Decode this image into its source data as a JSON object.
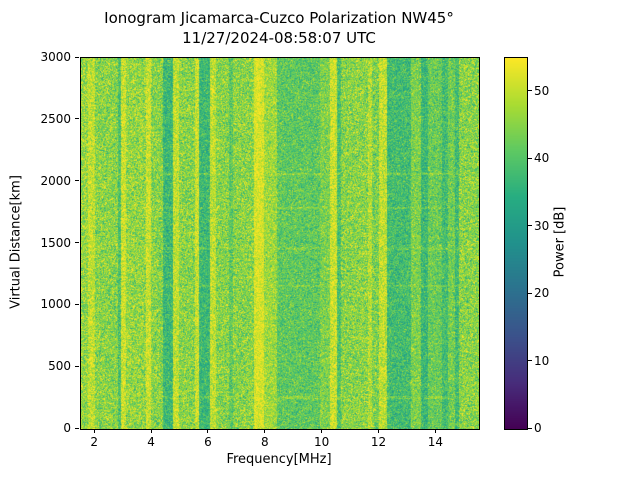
{
  "chart": {
    "title": "Ionogram Jicamarca-Cuzco Polarization NW45°",
    "subtitle": "11/27/2024-08:58:07 UTC",
    "xlabel": "Frequency[MHz]",
    "ylabel": "Virtual Distance[km]",
    "x_ticks": [
      2,
      4,
      6,
      8,
      10,
      12,
      14
    ],
    "y_ticks": [
      0,
      500,
      1000,
      1500,
      2000,
      2500,
      3000
    ],
    "colorbar": {
      "label": "Power [dB]",
      "ticks": [
        0,
        10,
        20,
        30,
        40,
        50
      ]
    }
  },
  "chart_data": {
    "type": "heatmap",
    "title": "Ionogram Jicamarca-Cuzco Polarization NW45°",
    "subtitle": "11/27/2024-08:58:07 UTC",
    "xlabel": "Frequency[MHz]",
    "ylabel": "Virtual Distance[km]",
    "colorbar_label": "Power [dB]",
    "x_range": [
      1.5,
      15.5
    ],
    "y_range": [
      0,
      3000
    ],
    "power_range": [
      0,
      55
    ],
    "colormap": "viridis",
    "colormap_stops": [
      "#440154",
      "#472d7b",
      "#3b528b",
      "#2c728e",
      "#21918c",
      "#27ad81",
      "#5ec962",
      "#aadc32",
      "#fde725"
    ],
    "noise": {
      "base_mean": 45,
      "std": 5
    },
    "bands": [
      {
        "from": 1.5,
        "to": 1.75,
        "mean": 46,
        "std": 5
      },
      {
        "from": 1.75,
        "to": 2.0,
        "mean": 50,
        "std": 4
      },
      {
        "from": 2.0,
        "to": 2.8,
        "mean": 45,
        "std": 5
      },
      {
        "from": 2.8,
        "to": 2.92,
        "mean": 39,
        "std": 4
      },
      {
        "from": 2.92,
        "to": 3.1,
        "mean": 51,
        "std": 4
      },
      {
        "from": 3.1,
        "to": 3.8,
        "mean": 46,
        "std": 5
      },
      {
        "from": 3.8,
        "to": 3.95,
        "mean": 51,
        "std": 4
      },
      {
        "from": 3.95,
        "to": 4.4,
        "mean": 45,
        "std": 5
      },
      {
        "from": 4.4,
        "to": 4.75,
        "mean": 37,
        "std": 4
      },
      {
        "from": 4.75,
        "to": 4.95,
        "mean": 50,
        "std": 4
      },
      {
        "from": 4.95,
        "to": 5.5,
        "mean": 45,
        "std": 5
      },
      {
        "from": 5.5,
        "to": 5.65,
        "mean": 51,
        "std": 4
      },
      {
        "from": 5.65,
        "to": 6.05,
        "mean": 37,
        "std": 4
      },
      {
        "from": 6.05,
        "to": 6.25,
        "mean": 50,
        "std": 4
      },
      {
        "from": 6.25,
        "to": 6.7,
        "mean": 45,
        "std": 5
      },
      {
        "from": 6.7,
        "to": 6.85,
        "mean": 41,
        "std": 4
      },
      {
        "from": 6.85,
        "to": 7.6,
        "mean": 45,
        "std": 5
      },
      {
        "from": 7.6,
        "to": 7.95,
        "mean": 52,
        "std": 3
      },
      {
        "from": 7.95,
        "to": 8.4,
        "mean": 47,
        "std": 4
      },
      {
        "from": 8.4,
        "to": 9.9,
        "mean": 41,
        "std": 4
      },
      {
        "from": 9.9,
        "to": 10.25,
        "mean": 44,
        "std": 4
      },
      {
        "from": 10.25,
        "to": 10.5,
        "mean": 51,
        "std": 4
      },
      {
        "from": 10.5,
        "to": 10.65,
        "mean": 39,
        "std": 4
      },
      {
        "from": 10.65,
        "to": 11.6,
        "mean": 45,
        "std": 5
      },
      {
        "from": 11.6,
        "to": 11.75,
        "mean": 49,
        "std": 4
      },
      {
        "from": 11.75,
        "to": 12.0,
        "mean": 44,
        "std": 5
      },
      {
        "from": 12.0,
        "to": 12.25,
        "mean": 50,
        "std": 4
      },
      {
        "from": 12.25,
        "to": 13.1,
        "mean": 38,
        "std": 4
      },
      {
        "from": 13.1,
        "to": 13.45,
        "mean": 44,
        "std": 4
      },
      {
        "from": 13.45,
        "to": 13.7,
        "mean": 37,
        "std": 4
      },
      {
        "from": 13.7,
        "to": 14.2,
        "mean": 42,
        "std": 4
      },
      {
        "from": 14.2,
        "to": 14.4,
        "mean": 38,
        "std": 4
      },
      {
        "from": 14.4,
        "to": 14.65,
        "mean": 43,
        "std": 4
      },
      {
        "from": 14.65,
        "to": 14.8,
        "mean": 38,
        "std": 4
      },
      {
        "from": 14.8,
        "to": 15.5,
        "mean": 45,
        "std": 5
      }
    ],
    "streaks": [
      {
        "y": 2060,
        "delta": 4,
        "halfwidth": 10,
        "only_below_mean": 42
      },
      {
        "y": 1790,
        "delta": 4,
        "halfwidth": 9,
        "only_below_mean": 42
      },
      {
        "y": 1460,
        "delta": 3,
        "halfwidth": 9,
        "only_below_mean": 42
      },
      {
        "y": 1160,
        "delta": 3,
        "halfwidth": 8,
        "only_below_mean": 42
      },
      {
        "y": 255,
        "delta": 4,
        "halfwidth": 10,
        "only_below_mean": 42
      }
    ]
  }
}
